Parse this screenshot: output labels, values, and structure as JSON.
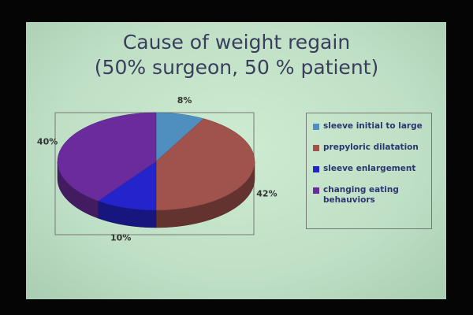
{
  "chart_data": {
    "type": "pie3d",
    "title": "Cause of weight regain",
    "subtitle": "(50% surgeon, 50 % patient)",
    "categories": [
      "sleeve initial to large",
      "prepyloric dilatation",
      "sleeve enlargement",
      "changing eating behauviors"
    ],
    "values": [
      8,
      42,
      10,
      40
    ],
    "value_labels": [
      "8%",
      "42%",
      "10%",
      "40%"
    ],
    "colors": [
      "#4f8fc0",
      "#a0524c",
      "#2424cc",
      "#6a2c9c"
    ]
  }
}
